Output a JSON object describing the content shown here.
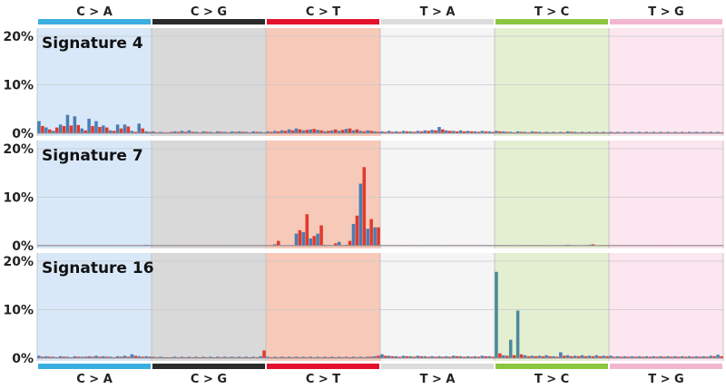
{
  "mutation_types": [
    {
      "label": "C > A",
      "bar_color": "#3aaee0",
      "bg_color": "#d8e8f8"
    },
    {
      "label": "C > G",
      "bar_color": "#2b2b2b",
      "bg_color": "#d9d9d9"
    },
    {
      "label": "C > T",
      "bar_color": "#e3112c",
      "bg_color": "#f7c9b8"
    },
    {
      "label": "T > A",
      "bar_color": "#dcdcdc",
      "bg_color": "#f5f5f5"
    },
    {
      "label": "T > C",
      "bar_color": "#8cc63f",
      "bg_color": "#e4efd2"
    },
    {
      "label": "T > G",
      "bar_color": "#f2b6cf",
      "bg_color": "#fce6f0"
    }
  ],
  "series_colors": {
    "blue": "#4a7db5",
    "red": "#e03a2c",
    "teal": "#4b8a9b"
  },
  "chart_data": [
    {
      "type": "bar",
      "title": "Signature 4",
      "ylim": [
        0,
        20
      ],
      "yticks": [
        "0%",
        "10%",
        "20%"
      ],
      "categories": [
        "C > A",
        "C > G",
        "C > T",
        "T > A",
        "T > C",
        "T > G"
      ],
      "values": [
        [
          2.5,
          1.5,
          1.2,
          0.8,
          0.5,
          1.2,
          1.8,
          1.5,
          3.8,
          1.6,
          3.5,
          1.7,
          1.0,
          0.6,
          3.0,
          1.5,
          2.5,
          1.3,
          1.6,
          1.2,
          0.6,
          0.5,
          1.8,
          1.0,
          1.8,
          1.4,
          0.5,
          0.3,
          2.0,
          1.0,
          0.4,
          0.3
        ],
        [
          0.4,
          0.2,
          0.3,
          0.2,
          0.2,
          0.3,
          0.4,
          0.3,
          0.5,
          0.3,
          0.6,
          0.3,
          0.3,
          0.2,
          0.4,
          0.3,
          0.3,
          0.2,
          0.4,
          0.3,
          0.3,
          0.2,
          0.4,
          0.3,
          0.4,
          0.3,
          0.3,
          0.2,
          0.4,
          0.3,
          0.3,
          0.2
        ],
        [
          0.4,
          0.3,
          0.5,
          0.4,
          0.6,
          0.5,
          0.8,
          0.6,
          1.0,
          0.8,
          0.6,
          0.7,
          0.8,
          0.9,
          0.7,
          0.6,
          0.4,
          0.5,
          0.6,
          0.8,
          0.5,
          0.7,
          0.9,
          1.0,
          0.6,
          0.8,
          0.5,
          0.4,
          0.6,
          0.5,
          0.4,
          0.3
        ],
        [
          0.4,
          0.3,
          0.5,
          0.3,
          0.4,
          0.3,
          0.5,
          0.4,
          0.4,
          0.3,
          0.5,
          0.4,
          0.6,
          0.5,
          0.7,
          0.6,
          1.3,
          0.8,
          0.6,
          0.5,
          0.5,
          0.4,
          0.6,
          0.4,
          0.5,
          0.4,
          0.4,
          0.3,
          0.5,
          0.4,
          0.4,
          0.3
        ],
        [
          0.5,
          0.4,
          0.4,
          0.3,
          0.3,
          0.2,
          0.4,
          0.3,
          0.3,
          0.2,
          0.4,
          0.3,
          0.3,
          0.2,
          0.3,
          0.2,
          0.3,
          0.2,
          0.3,
          0.2,
          0.4,
          0.3,
          0.3,
          0.2,
          0.3,
          0.2,
          0.3,
          0.2,
          0.3,
          0.2,
          0.3,
          0.2
        ],
        [
          0.3,
          0.2,
          0.3,
          0.2,
          0.3,
          0.2,
          0.3,
          0.2,
          0.3,
          0.2,
          0.3,
          0.2,
          0.3,
          0.2,
          0.3,
          0.2,
          0.3,
          0.2,
          0.3,
          0.2,
          0.3,
          0.2,
          0.3,
          0.2,
          0.3,
          0.2,
          0.3,
          0.2,
          0.3,
          0.2,
          0.3,
          0.2
        ]
      ]
    },
    {
      "type": "bar",
      "title": "Signature 7",
      "ylim": [
        0,
        20
      ],
      "yticks": [
        "0%",
        "10%",
        "20%"
      ],
      "categories": [
        "C > A",
        "C > G",
        "C > T",
        "T > A",
        "T > C",
        "T > G"
      ],
      "values": [
        [
          0.1,
          0.1,
          0.1,
          0.1,
          0.1,
          0.1,
          0.1,
          0.1,
          0.1,
          0.1,
          0.1,
          0.1,
          0.1,
          0.1,
          0.1,
          0.1,
          0.1,
          0.1,
          0.1,
          0.1,
          0.1,
          0.1,
          0.1,
          0.1,
          0.1,
          0.1,
          0.1,
          0.1,
          0.1,
          0.1,
          0.2,
          0.1
        ],
        [
          0.1,
          0.1,
          0.1,
          0.1,
          0.1,
          0.1,
          0.1,
          0.1,
          0.1,
          0.1,
          0.1,
          0.1,
          0.1,
          0.1,
          0.1,
          0.1,
          0.1,
          0.1,
          0.1,
          0.1,
          0.1,
          0.1,
          0.1,
          0.1,
          0.1,
          0.1,
          0.1,
          0.1,
          0.1,
          0.1,
          0.1,
          0.1
        ],
        [
          0.1,
          0.1,
          0.3,
          1.0,
          0.1,
          0.1,
          0.1,
          0.1,
          2.5,
          3.2,
          2.8,
          6.5,
          1.5,
          2.0,
          2.5,
          4.2,
          0.2,
          0.1,
          0.1,
          0.5,
          0.8,
          0.1,
          0.2,
          1.0,
          4.5,
          6.2,
          12.8,
          16.2,
          3.5,
          5.5,
          3.8,
          3.8
        ],
        [
          0.1,
          0.1,
          0.1,
          0.1,
          0.1,
          0.1,
          0.1,
          0.1,
          0.1,
          0.1,
          0.1,
          0.1,
          0.1,
          0.1,
          0.1,
          0.1,
          0.1,
          0.1,
          0.1,
          0.1,
          0.1,
          0.1,
          0.1,
          0.1,
          0.1,
          0.1,
          0.1,
          0.1,
          0.1,
          0.1,
          0.1,
          0.1
        ],
        [
          0.1,
          0.1,
          0.1,
          0.1,
          0.1,
          0.1,
          0.1,
          0.1,
          0.1,
          0.1,
          0.1,
          0.1,
          0.1,
          0.1,
          0.1,
          0.1,
          0.1,
          0.1,
          0.1,
          0.1,
          0.2,
          0.1,
          0.1,
          0.1,
          0.1,
          0.1,
          0.2,
          0.3,
          0.1,
          0.1,
          0.1,
          0.1
        ],
        [
          0.1,
          0.1,
          0.1,
          0.1,
          0.1,
          0.1,
          0.1,
          0.1,
          0.1,
          0.1,
          0.1,
          0.1,
          0.1,
          0.1,
          0.1,
          0.1,
          0.1,
          0.1,
          0.1,
          0.1,
          0.1,
          0.1,
          0.1,
          0.1,
          0.1,
          0.1,
          0.1,
          0.1,
          0.1,
          0.1,
          0.1,
          0.1
        ]
      ]
    },
    {
      "type": "bar",
      "title": "Signature 16",
      "ylim": [
        0,
        20
      ],
      "yticks": [
        "0%",
        "10%",
        "20%"
      ],
      "categories": [
        "C > A",
        "C > G",
        "C > T",
        "T > A",
        "T > C",
        "T > G"
      ],
      "values": [
        [
          0.5,
          0.3,
          0.4,
          0.3,
          0.3,
          0.2,
          0.4,
          0.3,
          0.3,
          0.2,
          0.4,
          0.3,
          0.3,
          0.3,
          0.4,
          0.3,
          0.5,
          0.3,
          0.4,
          0.3,
          0.3,
          0.2,
          0.4,
          0.3,
          0.5,
          0.3,
          0.8,
          0.5,
          0.4,
          0.3,
          0.4,
          0.3
        ],
        [
          0.3,
          0.2,
          0.3,
          0.2,
          0.2,
          0.2,
          0.3,
          0.2,
          0.3,
          0.2,
          0.3,
          0.2,
          0.3,
          0.2,
          0.3,
          0.2,
          0.3,
          0.2,
          0.3,
          0.2,
          0.3,
          0.2,
          0.3,
          0.2,
          0.3,
          0.2,
          0.3,
          0.2,
          0.3,
          0.2,
          0.4,
          1.6
        ],
        [
          0.3,
          0.2,
          0.3,
          0.2,
          0.3,
          0.2,
          0.3,
          0.2,
          0.3,
          0.2,
          0.3,
          0.2,
          0.3,
          0.2,
          0.3,
          0.2,
          0.3,
          0.2,
          0.3,
          0.2,
          0.3,
          0.2,
          0.3,
          0.2,
          0.3,
          0.2,
          0.3,
          0.2,
          0.3,
          0.3,
          0.4,
          0.5
        ],
        [
          0.8,
          0.5,
          0.5,
          0.4,
          0.4,
          0.3,
          0.5,
          0.4,
          0.4,
          0.3,
          0.5,
          0.4,
          0.4,
          0.3,
          0.4,
          0.3,
          0.4,
          0.3,
          0.4,
          0.3,
          0.5,
          0.4,
          0.4,
          0.3,
          0.4,
          0.3,
          0.4,
          0.3,
          0.5,
          0.4,
          0.4,
          0.3
        ],
        [
          17.8,
          1.0,
          0.6,
          0.5,
          3.8,
          0.6,
          9.8,
          0.8,
          0.6,
          0.4,
          0.5,
          0.4,
          0.5,
          0.4,
          0.6,
          0.4,
          0.4,
          0.3,
          1.2,
          0.5,
          0.6,
          0.4,
          0.5,
          0.4,
          0.6,
          0.4,
          0.5,
          0.4,
          0.6,
          0.4,
          0.5,
          0.4
        ],
        [
          0.5,
          0.3,
          0.4,
          0.3,
          0.4,
          0.3,
          0.4,
          0.3,
          0.4,
          0.3,
          0.4,
          0.3,
          0.4,
          0.3,
          0.4,
          0.3,
          0.4,
          0.3,
          0.4,
          0.3,
          0.4,
          0.3,
          0.4,
          0.3,
          0.4,
          0.3,
          0.4,
          0.3,
          0.5,
          0.4,
          0.7,
          0.4
        ]
      ]
    }
  ]
}
